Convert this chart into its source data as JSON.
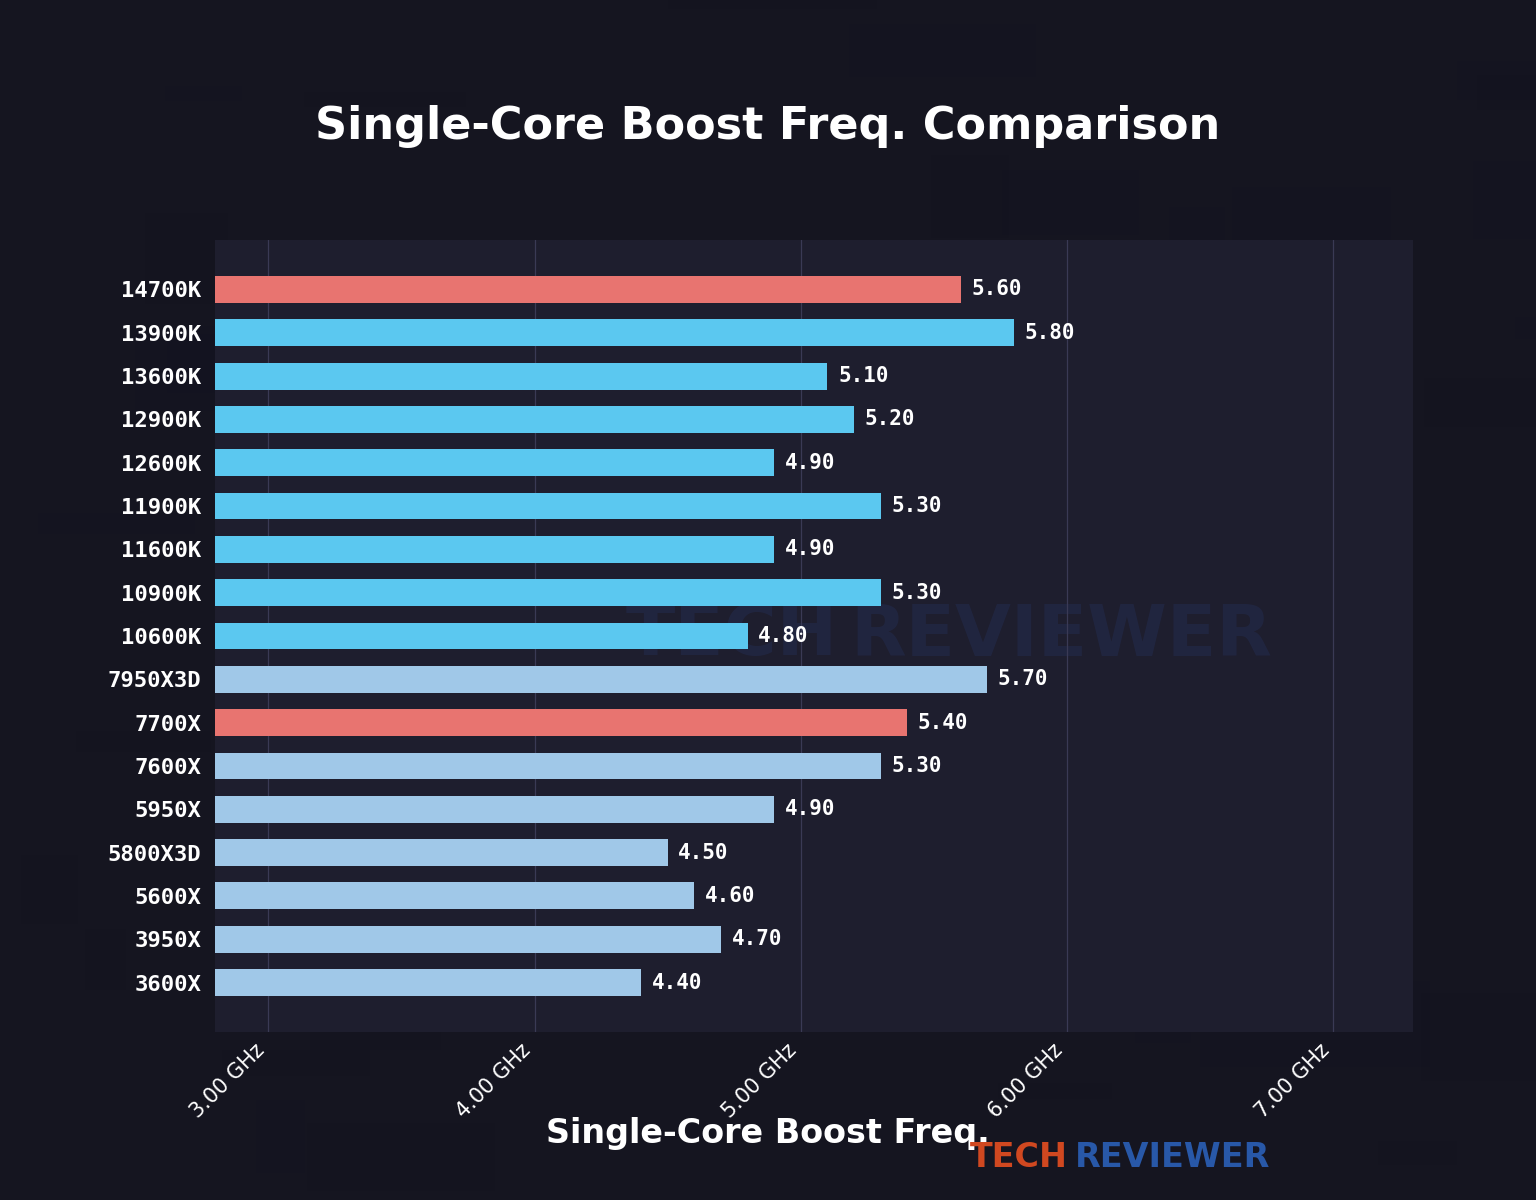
{
  "title": "Single-Core Boost Freq. Comparison",
  "xlabel": "Single-Core Boost Freq.",
  "categories": [
    "14700K",
    "13900K",
    "13600K",
    "12900K",
    "12600K",
    "11900K",
    "11600K",
    "10900K",
    "10600K",
    "7950X3D",
    "7700X",
    "7600X",
    "5950X",
    "5800X3D",
    "5600X",
    "3950X",
    "3600X"
  ],
  "values": [
    5.6,
    5.8,
    5.1,
    5.2,
    4.9,
    5.3,
    4.9,
    5.3,
    4.8,
    5.7,
    5.4,
    5.3,
    4.9,
    4.5,
    4.6,
    4.7,
    4.4
  ],
  "bar_colors": [
    "#E87470",
    "#5BC8F0",
    "#5BC8F0",
    "#5BC8F0",
    "#5BC8F0",
    "#5BC8F0",
    "#5BC8F0",
    "#5BC8F0",
    "#5BC8F0",
    "#A0C8E8",
    "#E87470",
    "#A0C8E8",
    "#A0C8E8",
    "#A0C8E8",
    "#A0C8E8",
    "#A0C8E8",
    "#A0C8E8"
  ],
  "label_colors": [
    "#5BC8F0",
    "#5BC8F0",
    "#5BC8F0",
    "#5BC8F0",
    "#5BC8F0",
    "#5BC8F0",
    "#5BC8F0",
    "#5BC8F0",
    "#5BC8F0",
    "#F08880",
    "#F08880",
    "#F08880",
    "#F08880",
    "#F08880",
    "#F08880",
    "#F08880",
    "#F08880"
  ],
  "xlim": [
    2.8,
    7.3
  ],
  "xticks": [
    3.0,
    4.0,
    5.0,
    6.0,
    7.0
  ],
  "xtick_labels": [
    "3.00 GHz",
    "4.00 GHz",
    "5.00 GHz",
    "6.00 GHz",
    "7.00 GHz"
  ],
  "bg_color": "#151520",
  "plot_bg_color": "#1e1e2e",
  "title_color": "#ffffff",
  "value_label_color": "#ffffff",
  "grid_color": "#3a3a55",
  "bar_height": 0.62,
  "title_fontsize": 32,
  "label_fontsize": 16,
  "value_fontsize": 15,
  "xtick_fontsize": 15,
  "xlabel_fontsize": 24,
  "watermark_color": "#2a4080",
  "watermark_alpha": 0.22,
  "tech_color": "#D04820",
  "reviewer_color": "#2858A8"
}
